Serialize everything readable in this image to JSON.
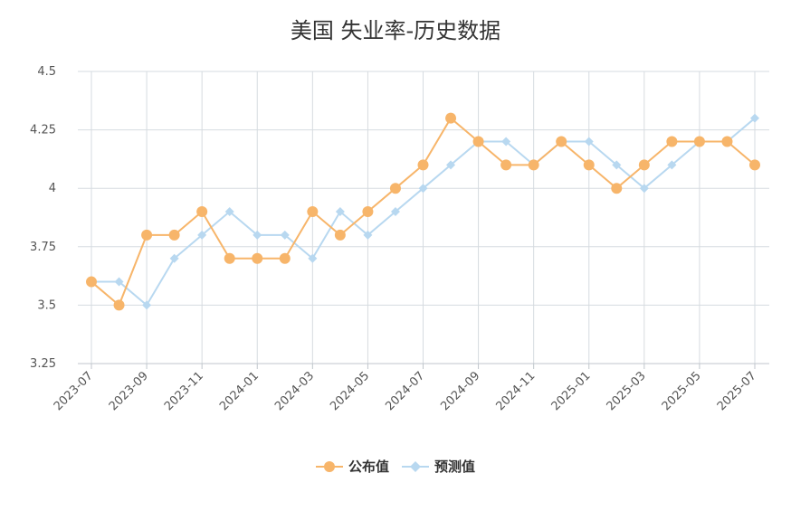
{
  "chart_data": {
    "type": "line",
    "title": "美国 失业率-历史数据",
    "categories": [
      "2023-07",
      "2023-08",
      "2023-09",
      "2023-10",
      "2023-11",
      "2023-12",
      "2024-01",
      "2024-02",
      "2024-03",
      "2024-04",
      "2024-05",
      "2024-06",
      "2024-07",
      "2024-08",
      "2024-09",
      "2024-10",
      "2024-11",
      "2024-12",
      "2025-01",
      "2025-02",
      "2025-03",
      "2025-04",
      "2025-05",
      "2025-06",
      "2025-07"
    ],
    "x_tick_labels": [
      "2023-07",
      "2023-09",
      "2023-11",
      "2024-01",
      "2024-03",
      "2024-05",
      "2024-07",
      "2024-09",
      "2024-11",
      "2025-01",
      "2025-03",
      "2025-05",
      "2025-07"
    ],
    "y_tick_labels": [
      "4.5",
      "4.25",
      "4",
      "3.75",
      "3.5",
      "3.25"
    ],
    "ylim": [
      3.25,
      4.5
    ],
    "grid": true,
    "legend_position": "bottom",
    "series": [
      {
        "name": "公布值",
        "color": "#f7b56a",
        "marker": "circle",
        "values": [
          3.6,
          3.5,
          3.8,
          3.8,
          3.9,
          3.7,
          3.7,
          3.7,
          3.9,
          3.8,
          3.9,
          4.0,
          4.1,
          4.3,
          4.2,
          4.1,
          4.1,
          4.2,
          4.1,
          4.0,
          4.1,
          4.2,
          4.2,
          4.2,
          4.1
        ]
      },
      {
        "name": "预测值",
        "color": "#b8d8f0",
        "marker": "diamond",
        "values": [
          3.6,
          3.6,
          3.5,
          3.7,
          3.8,
          3.9,
          3.8,
          3.8,
          3.7,
          3.9,
          3.8,
          3.9,
          4.0,
          4.1,
          4.2,
          4.2,
          4.1,
          4.2,
          4.2,
          4.1,
          4.0,
          4.1,
          4.2,
          4.2,
          4.3
        ]
      }
    ]
  }
}
